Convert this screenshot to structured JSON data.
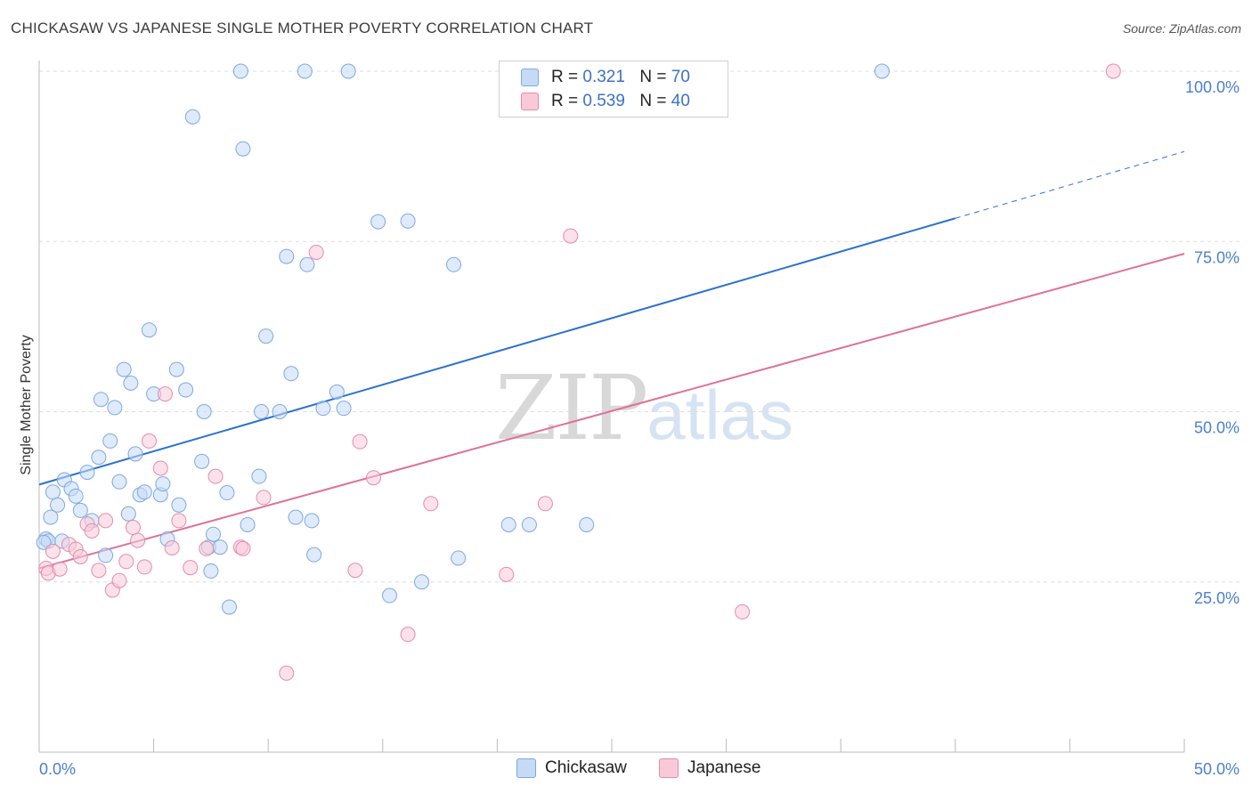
{
  "header": {
    "title": "CHICKASAW VS JAPANESE SINGLE MOTHER POVERTY CORRELATION CHART",
    "source": "Source: ZipAtlas.com"
  },
  "watermark": {
    "zip": "ZIP",
    "atlas": "atlas"
  },
  "legend": {
    "rows": [
      {
        "r_label": "R =",
        "r_value": "0.321",
        "n_label": "N =",
        "n_value": "70",
        "color": "#a9c8f0"
      },
      {
        "r_label": "R =",
        "r_value": "0.539",
        "n_label": "N =",
        "n_value": "40",
        "color": "#f4b8cb"
      }
    ]
  },
  "bottom_legend": {
    "items": [
      "Chickasaw",
      "Japanese"
    ]
  },
  "colors": {
    "chickasaw_fill": "#c5daf5",
    "chickasaw_stroke": "#7ea8e0",
    "chickasaw_line": "#2b72d0",
    "japanese_fill": "#f8cad8",
    "japanese_stroke": "#e68aa8",
    "japanese_line": "#e0709a",
    "tick_text": "#4a7fcf",
    "grid": "#dddddd"
  },
  "chart_data": {
    "type": "scatter",
    "title": "CHICKASAW VS JAPANESE SINGLE MOTHER POVERTY CORRELATION CHART",
    "xlabel": "",
    "ylabel": "Single Mother Poverty",
    "xlim": [
      0,
      50
    ],
    "ylim": [
      0,
      100
    ],
    "x_tick_labels": [
      "0.0%",
      "50.0%"
    ],
    "y_tick_labels": [
      "100.0%",
      "75.0%",
      "50.0%",
      "25.0%"
    ],
    "y_ticks": [
      100,
      75,
      50,
      25
    ],
    "grid": true,
    "legend_position": "top-center",
    "series": [
      {
        "name": "Chickasaw",
        "R": 0.321,
        "N": 70,
        "trend": {
          "x0": 0,
          "y0": 39.3,
          "x1": 40,
          "y1": 78.4,
          "dashed_to_x": 50,
          "dashed_to_y": 88.2
        },
        "points": [
          [
            0.3,
            31.3
          ],
          [
            0.4,
            31
          ],
          [
            0.5,
            34.5
          ],
          [
            0.6,
            38.2
          ],
          [
            0.8,
            36.3
          ],
          [
            1.0,
            31
          ],
          [
            1.1,
            40
          ],
          [
            1.4,
            38.7
          ],
          [
            1.6,
            37.6
          ],
          [
            1.8,
            35.5
          ],
          [
            2.1,
            41.1
          ],
          [
            2.3,
            34
          ],
          [
            2.6,
            43.3
          ],
          [
            2.7,
            51.8
          ],
          [
            2.9,
            28.9
          ],
          [
            3.1,
            45.7
          ],
          [
            3.3,
            50.6
          ],
          [
            3.5,
            39.7
          ],
          [
            3.7,
            56.2
          ],
          [
            3.9,
            35
          ],
          [
            4.0,
            54.2
          ],
          [
            4.2,
            43.8
          ],
          [
            4.4,
            37.8
          ],
          [
            4.6,
            38.2
          ],
          [
            4.8,
            62
          ],
          [
            5.0,
            52.6
          ],
          [
            5.3,
            37.8
          ],
          [
            5.4,
            39.4
          ],
          [
            5.6,
            31.3
          ],
          [
            6.0,
            56.2
          ],
          [
            6.1,
            36.3
          ],
          [
            6.4,
            53.2
          ],
          [
            6.7,
            93.3
          ],
          [
            7.1,
            42.7
          ],
          [
            7.2,
            50
          ],
          [
            7.4,
            30.1
          ],
          [
            7.5,
            26.6
          ],
          [
            7.6,
            32
          ],
          [
            7.9,
            30.1
          ],
          [
            8.2,
            38.1
          ],
          [
            8.3,
            21.3
          ],
          [
            8.8,
            100
          ],
          [
            8.9,
            88.6
          ],
          [
            9.1,
            33.4
          ],
          [
            9.6,
            40.5
          ],
          [
            9.7,
            50
          ],
          [
            9.9,
            61.1
          ],
          [
            10.5,
            50
          ],
          [
            10.8,
            72.8
          ],
          [
            11.0,
            55.6
          ],
          [
            11.2,
            34.5
          ],
          [
            11.6,
            100
          ],
          [
            11.7,
            71.6
          ],
          [
            11.9,
            34
          ],
          [
            12.0,
            29
          ],
          [
            12.4,
            50.5
          ],
          [
            13.0,
            52.9
          ],
          [
            13.3,
            50.5
          ],
          [
            13.5,
            100
          ],
          [
            14.8,
            77.9
          ],
          [
            15.3,
            23
          ],
          [
            16.1,
            78
          ],
          [
            16.7,
            25
          ],
          [
            18.1,
            71.6
          ],
          [
            18.3,
            28.5
          ],
          [
            20.5,
            33.4
          ],
          [
            21.4,
            33.4
          ],
          [
            23.9,
            33.4
          ],
          [
            36.8,
            100
          ],
          [
            0.2,
            30.8
          ]
        ]
      },
      {
        "name": "Japanese",
        "R": 0.539,
        "N": 40,
        "trend": {
          "x0": 0,
          "y0": 27,
          "x1": 50,
          "y1": 73.2
        },
        "points": [
          [
            0.3,
            27
          ],
          [
            0.4,
            26.3
          ],
          [
            0.6,
            29.5
          ],
          [
            0.9,
            26.9
          ],
          [
            1.3,
            30.5
          ],
          [
            1.6,
            29.8
          ],
          [
            1.8,
            28.7
          ],
          [
            2.1,
            33.5
          ],
          [
            2.3,
            32.5
          ],
          [
            2.6,
            26.7
          ],
          [
            2.9,
            34
          ],
          [
            3.2,
            23.8
          ],
          [
            3.5,
            25.2
          ],
          [
            3.8,
            28
          ],
          [
            4.1,
            33
          ],
          [
            4.3,
            31.1
          ],
          [
            4.6,
            27.2
          ],
          [
            4.8,
            45.7
          ],
          [
            5.3,
            41.7
          ],
          [
            5.5,
            52.6
          ],
          [
            5.8,
            30
          ],
          [
            6.1,
            34
          ],
          [
            6.6,
            27.1
          ],
          [
            7.3,
            29.9
          ],
          [
            7.7,
            40.5
          ],
          [
            8.8,
            30.1
          ],
          [
            8.9,
            29.9
          ],
          [
            9.8,
            37.4
          ],
          [
            10.8,
            11.6
          ],
          [
            12.1,
            73.4
          ],
          [
            13.8,
            26.7
          ],
          [
            14.0,
            45.6
          ],
          [
            14.6,
            40.3
          ],
          [
            16.1,
            17.3
          ],
          [
            17.1,
            36.5
          ],
          [
            20.4,
            26.1
          ],
          [
            22.1,
            36.5
          ],
          [
            23.2,
            75.8
          ],
          [
            30.7,
            20.6
          ],
          [
            46.9,
            100
          ]
        ]
      }
    ]
  }
}
